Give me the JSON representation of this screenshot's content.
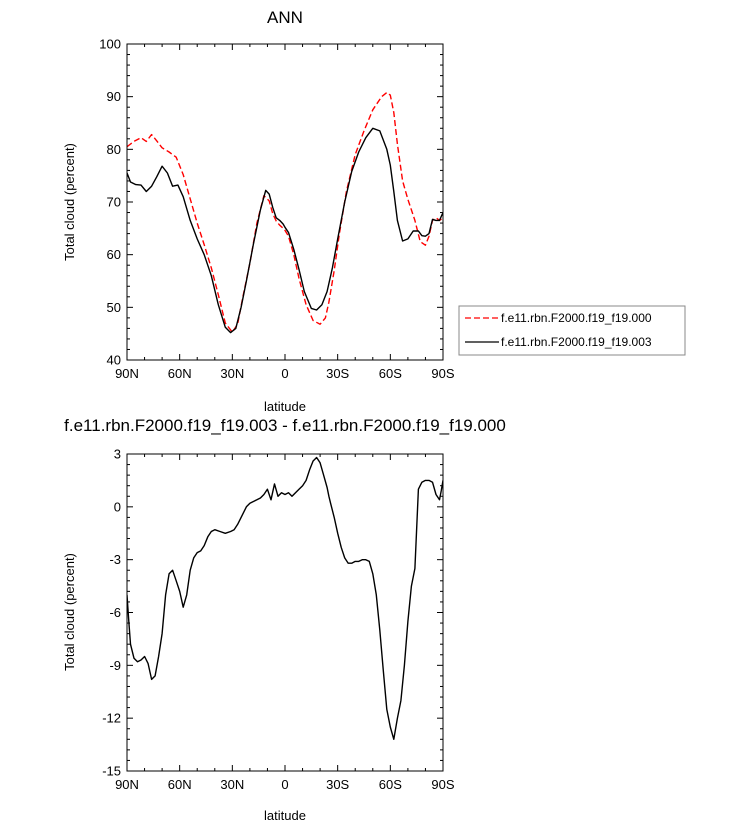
{
  "chart_data": [
    {
      "type": "line",
      "title": "ANN",
      "xlabel": "latitude",
      "ylabel": "Total cloud (percent)",
      "xlim": [
        90,
        -90
      ],
      "ylim": [
        40,
        100
      ],
      "x_tick_values": [
        90,
        60,
        30,
        0,
        -30,
        -60,
        -90
      ],
      "x_ticks": [
        "90N",
        "60N",
        "30N",
        "0",
        "30S",
        "60S",
        "90S"
      ],
      "y_ticks": [
        40,
        50,
        60,
        70,
        80,
        90,
        100
      ],
      "legend_position": "right",
      "series": [
        {
          "name": "f.e11.rbn.F2000.f19_f19.000",
          "color": "#ff0000",
          "dash": "dashed",
          "x": [
            90,
            86,
            82,
            79,
            76,
            73,
            70,
            66,
            62,
            58,
            54,
            50,
            46,
            42,
            38,
            34,
            30,
            27,
            24,
            20,
            16,
            12,
            9,
            7,
            5,
            3,
            1,
            0,
            -2,
            -5,
            -8,
            -12,
            -16,
            -20,
            -23,
            -25,
            -28,
            -31,
            -35,
            -40,
            -45,
            -50,
            -55,
            -58,
            -60,
            -62,
            -64,
            -67,
            -70,
            -74,
            -77,
            -80,
            -82,
            -84,
            -86,
            -88,
            -90
          ],
          "y": [
            80.5,
            81.5,
            82.2,
            81.5,
            82.8,
            81.6,
            80.3,
            79.5,
            78.5,
            75.2,
            70.6,
            66.0,
            61.9,
            57.5,
            52.4,
            47.0,
            45.3,
            46.8,
            52.0,
            58.4,
            66.0,
            71.2,
            70.2,
            67.8,
            66.4,
            65.6,
            65.0,
            64.6,
            63.5,
            60.0,
            55.5,
            50.5,
            47.5,
            46.8,
            48.0,
            51.0,
            57.0,
            64.0,
            72.0,
            79.0,
            83.5,
            87.5,
            90.0,
            90.8,
            90.3,
            87.0,
            81.0,
            74.0,
            70.5,
            66.5,
            62.5,
            61.8,
            63.5,
            66.5,
            67.0,
            66.5,
            67.0
          ]
        },
        {
          "name": "f.e11.rbn.F2000.f19_f19.003",
          "color": "#000000",
          "dash": "solid",
          "x": [
            90,
            88,
            85,
            82,
            79,
            76,
            73,
            70,
            67,
            64,
            61,
            58,
            54,
            50,
            46,
            42,
            38,
            34,
            31,
            28,
            25,
            22,
            18,
            14,
            11,
            9,
            7,
            5,
            3,
            1,
            0,
            -2,
            -5,
            -8,
            -11,
            -15,
            -18,
            -21,
            -24,
            -27,
            -30,
            -34,
            -38,
            -42,
            -46,
            -50,
            -54,
            -58,
            -60,
            -62,
            -64,
            -67,
            -70,
            -73,
            -76,
            -78,
            -80,
            -82,
            -84,
            -86,
            -88,
            -90
          ],
          "y": [
            75.5,
            73.8,
            73.3,
            73.2,
            72.0,
            73.0,
            74.8,
            76.8,
            75.5,
            73.0,
            73.2,
            71.0,
            66.5,
            63.0,
            60.0,
            56.0,
            50.5,
            46.2,
            45.2,
            46.0,
            50.0,
            55.0,
            62.0,
            68.5,
            72.2,
            71.5,
            69.0,
            67.0,
            66.5,
            65.8,
            65.2,
            64.2,
            61.0,
            57.2,
            53.0,
            49.8,
            49.5,
            50.5,
            53.0,
            57.5,
            63.0,
            70.0,
            75.8,
            79.5,
            82.2,
            84.0,
            83.5,
            80.0,
            77.0,
            72.0,
            66.5,
            62.6,
            63.0,
            64.5,
            64.5,
            63.6,
            63.5,
            64.0,
            66.7,
            66.5,
            66.5,
            68.0
          ]
        }
      ]
    },
    {
      "type": "line",
      "title": "f.e11.rbn.F2000.f19_f19.003 - f.e11.rbn.F2000.f19_f19.000",
      "xlabel": "latitude",
      "ylabel": "Total cloud (percent)",
      "xlim": [
        90,
        -90
      ],
      "ylim": [
        -15,
        3
      ],
      "x_tick_values": [
        90,
        60,
        30,
        0,
        -30,
        -60,
        -90
      ],
      "x_ticks": [
        "90N",
        "60N",
        "30N",
        "0",
        "30S",
        "60S",
        "90S"
      ],
      "y_ticks": [
        "-15",
        "-12",
        "-9",
        "-6",
        "-3",
        "0",
        "3"
      ],
      "y_tick_values": [
        -15,
        -12,
        -9,
        -6,
        -3,
        0,
        3
      ],
      "series": [
        {
          "color": "#000000",
          "dash": "solid",
          "x": [
            90,
            89,
            88,
            86,
            84,
            82,
            80,
            78,
            76,
            74,
            72,
            70,
            68,
            66,
            64,
            62,
            60,
            58,
            56,
            54,
            52,
            50,
            48,
            46,
            44,
            42,
            40,
            37,
            34,
            31,
            29,
            27,
            25,
            22,
            20,
            18,
            16,
            14,
            12,
            10,
            8,
            6,
            4,
            2,
            0,
            -2,
            -4,
            -6,
            -8,
            -10,
            -12,
            -14,
            -16,
            -18,
            -20,
            -22,
            -24,
            -25,
            -26,
            -28,
            -30,
            -32,
            -34,
            -36,
            -38,
            -40,
            -42,
            -44,
            -46,
            -48,
            -50,
            -52,
            -54,
            -56,
            -58,
            -60,
            -62,
            -64,
            -66,
            -68,
            -70,
            -72,
            -74,
            -76,
            -78,
            -80,
            -82,
            -84,
            -86,
            -88,
            -89,
            -90
          ],
          "y": [
            -5.0,
            -6.5,
            -7.8,
            -8.6,
            -8.8,
            -8.7,
            -8.5,
            -8.9,
            -9.8,
            -9.6,
            -8.5,
            -7.2,
            -5.0,
            -3.8,
            -3.6,
            -4.2,
            -4.8,
            -5.7,
            -5.0,
            -3.6,
            -2.9,
            -2.6,
            -2.5,
            -2.2,
            -1.7,
            -1.4,
            -1.3,
            -1.4,
            -1.5,
            -1.4,
            -1.3,
            -1.0,
            -0.6,
            0.0,
            0.2,
            0.3,
            0.4,
            0.5,
            0.7,
            1.0,
            0.4,
            1.3,
            0.6,
            0.8,
            0.7,
            0.8,
            0.6,
            0.8,
            1.0,
            1.2,
            1.5,
            2.1,
            2.6,
            2.8,
            2.5,
            1.8,
            1.1,
            0.6,
            0.2,
            -0.6,
            -1.5,
            -2.3,
            -2.9,
            -3.2,
            -3.2,
            -3.1,
            -3.1,
            -3.0,
            -3.0,
            -3.1,
            -3.8,
            -5.0,
            -7.0,
            -9.3,
            -11.5,
            -12.5,
            -13.2,
            -12.0,
            -11.0,
            -9.0,
            -6.5,
            -4.5,
            -3.5,
            1.0,
            1.4,
            1.5,
            1.5,
            1.4,
            0.7,
            0.4,
            0.9,
            1.5
          ]
        }
      ]
    }
  ]
}
